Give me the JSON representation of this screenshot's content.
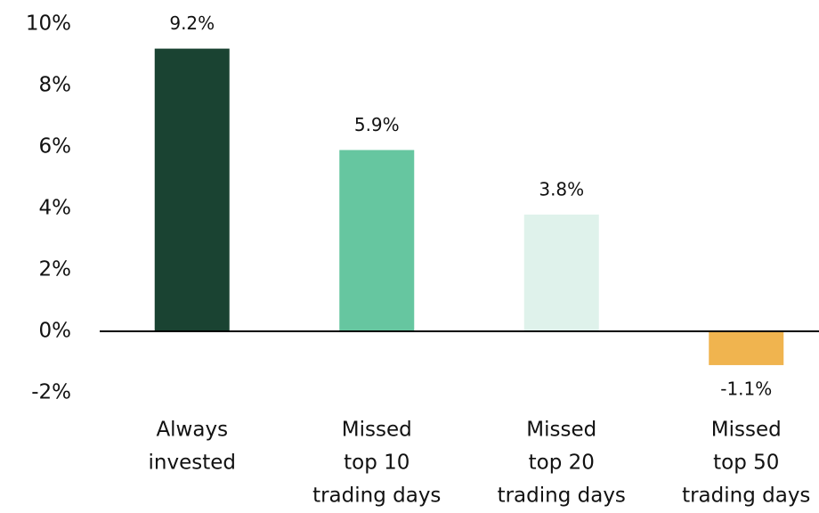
{
  "chart_data": {
    "type": "bar",
    "categories": [
      [
        "Always",
        "invested"
      ],
      [
        "Missed",
        "top 10",
        "trading days"
      ],
      [
        "Missed",
        "top 20",
        "trading days"
      ],
      [
        "Missed",
        "top 50",
        "trading days"
      ]
    ],
    "values": [
      9.2,
      5.9,
      3.8,
      -1.1
    ],
    "value_labels": [
      "9.2%",
      "5.9%",
      "3.8%",
      "-1.1%"
    ],
    "colors": [
      "#1a4332",
      "#66c6a0",
      "#dff2eb",
      "#f0b44f"
    ],
    "ylim": [
      -2,
      10
    ],
    "yticks": [
      {
        "value": -2,
        "label": "-2%"
      },
      {
        "value": 0,
        "label": "0%"
      },
      {
        "value": 2,
        "label": "2%"
      },
      {
        "value": 4,
        "label": "4%"
      },
      {
        "value": 6,
        "label": "6%"
      },
      {
        "value": 8,
        "label": "8%"
      },
      {
        "value": 10,
        "label": "10%"
      }
    ],
    "grid": false
  }
}
